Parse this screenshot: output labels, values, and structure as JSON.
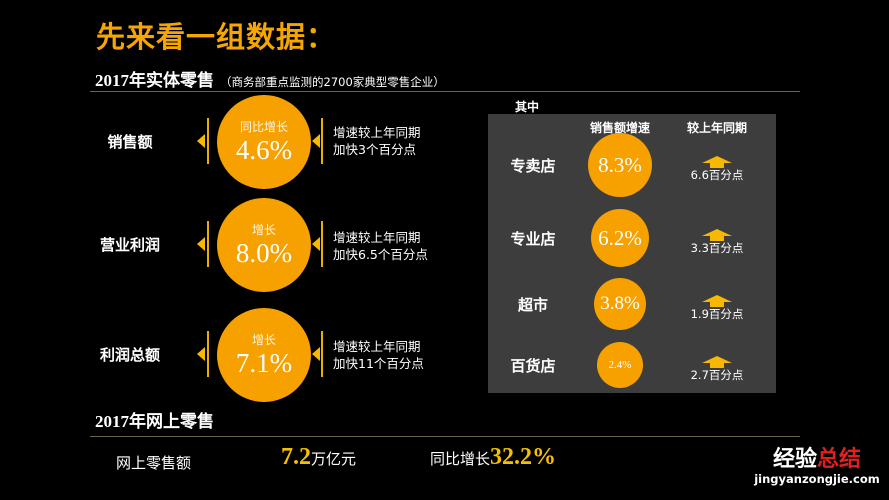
{
  "title": "先来看一组数据：",
  "offline": {
    "heading": "2017年实体零售",
    "note": "（商务部重点监测的2700家典型零售企业）",
    "rows": [
      {
        "label": "销售额",
        "circle_top": "同比增长",
        "value": "4.6%",
        "line1": "增速较上年同期",
        "line2": "加快3个百分点"
      },
      {
        "label": "营业利润",
        "circle_top": "增长",
        "value": "8.0%",
        "line1": "增速较上年同期",
        "line2": "加快6.5个百分点"
      },
      {
        "label": "利润总额",
        "circle_top": "增长",
        "value": "7.1%",
        "line1": "增速较上年同期",
        "line2": "加快11个百分点"
      }
    ]
  },
  "breakdown": {
    "heading": "其中",
    "col1": "销售额增速",
    "col2": "较上年同期",
    "arrow_icon": "up-arrow-icon",
    "rows": [
      {
        "label": "专卖店",
        "growth": "8.3%",
        "change": "6.6百分点"
      },
      {
        "label": "专业店",
        "growth": "6.2%",
        "change": "3.3百分点"
      },
      {
        "label": "超市",
        "growth": "3.8%",
        "change": "1.9百分点"
      },
      {
        "label": "百货店",
        "growth": "2.4%",
        "change": "2.7百分点"
      }
    ]
  },
  "online": {
    "heading": "2017年网上零售",
    "label": "网上零售额",
    "amount": "7.2",
    "unit": "万亿元",
    "growth_label": "同比增长",
    "growth": "32.2%"
  },
  "watermark": {
    "line1a": "经验",
    "line1b": "总结",
    "line2": "jingyanzongjie.com"
  },
  "colors": {
    "accent": "#f6a100",
    "gold": "#f6c000",
    "panel": "#3d3d3d"
  }
}
